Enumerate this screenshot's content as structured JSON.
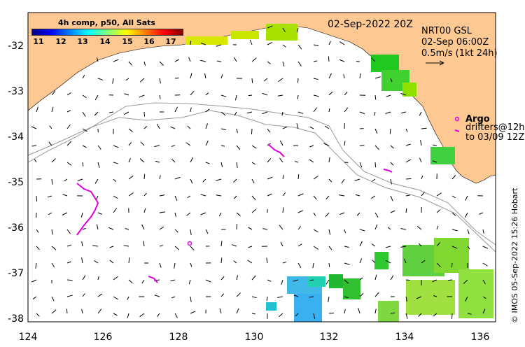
{
  "map": {
    "product_title": "4h comp, p50, All Sats",
    "date_label": "02-Sep-2022 20Z",
    "colorbar_ticks": [
      "11",
      "12",
      "13",
      "14",
      "15",
      "16",
      "17"
    ],
    "velocity_title": "NRT00 GSL",
    "velocity_time": "02-Sep 06:00Z",
    "velocity_scale": "0.5m/s (1kt 24h)",
    "argo_label": "Argo",
    "drifter_label": "drifters@12h",
    "drifter_to": "to 03/09 12Z",
    "credit": "© IMOS 05-Sep-2022 15:26 Hobart",
    "x_ticks": [
      "124",
      "126",
      "128",
      "130",
      "132",
      "134",
      "136"
    ],
    "y_ticks": [
      "-32",
      "-33",
      "-34",
      "-35",
      "-36",
      "-37",
      "-38"
    ],
    "colors": {
      "land": "#fdc891",
      "argo": "#e000e0",
      "arrow": "#000000"
    }
  }
}
